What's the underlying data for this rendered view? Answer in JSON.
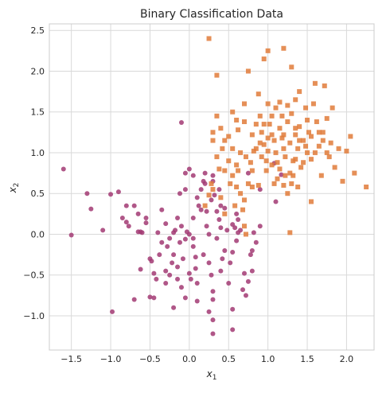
{
  "chart_data": {
    "type": "scatter",
    "title": "Binary Classification Data",
    "xlabel": {
      "base": "x",
      "sub": "1"
    },
    "ylabel": {
      "base": "x",
      "sub": "2"
    },
    "xlim": [
      -1.78,
      2.35
    ],
    "ylim": [
      -1.42,
      2.58
    ],
    "xticks": [
      -1.5,
      -1.0,
      -0.5,
      0.0,
      0.5,
      1.0,
      1.5,
      2.0
    ],
    "xtick_labels": [
      "−1.5",
      "−1.0",
      "−0.5",
      "0.0",
      "0.5",
      "1.0",
      "1.5",
      "2.0"
    ],
    "yticks": [
      -1.0,
      -0.5,
      0.0,
      0.5,
      1.0,
      1.5,
      2.0,
      2.5
    ],
    "ytick_labels": [
      "−1.0",
      "−0.5",
      "0.0",
      "0.5",
      "1.0",
      "1.5",
      "2.0",
      "2.5"
    ],
    "grid": true,
    "series": [
      {
        "color": "#a23a73",
        "marker": "circle",
        "points": [
          [
            -1.6,
            0.8
          ],
          [
            -1.5,
            -0.01
          ],
          [
            -1.3,
            0.5
          ],
          [
            -1.25,
            0.31
          ],
          [
            -1.1,
            0.05
          ],
          [
            -1.0,
            0.49
          ],
          [
            -0.9,
            0.52
          ],
          [
            -0.98,
            -0.95
          ],
          [
            -0.8,
            0.35
          ],
          [
            -0.7,
            -0.8
          ],
          [
            -0.65,
            0.03
          ],
          [
            -0.62,
            0.03
          ],
          [
            -0.8,
            0.15
          ],
          [
            -0.77,
            0.1
          ],
          [
            -0.62,
            -0.43
          ],
          [
            -0.55,
            0.2
          ],
          [
            -0.5,
            -0.3
          ],
          [
            -0.48,
            -0.33
          ],
          [
            -0.45,
            -0.48
          ],
          [
            -0.42,
            -0.55
          ],
          [
            -0.5,
            -0.77
          ],
          [
            -0.45,
            -0.78
          ],
          [
            -0.3,
            -0.6
          ],
          [
            -0.35,
            0.3
          ],
          [
            -0.3,
            0.13
          ],
          [
            -0.28,
            -0.15
          ],
          [
            -0.25,
            -0.5
          ],
          [
            -0.22,
            -0.35
          ],
          [
            -0.2,
            -0.25
          ],
          [
            -0.18,
            0.05
          ],
          [
            -0.15,
            0.2
          ],
          [
            -0.15,
            -0.4
          ],
          [
            -0.12,
            -0.1
          ],
          [
            -0.1,
            0.1
          ],
          [
            -0.1,
            -0.65
          ],
          [
            -0.08,
            -0.3
          ],
          [
            -0.05,
            -0.06
          ],
          [
            -0.05,
            0.55
          ],
          [
            -0.03,
            0.03
          ],
          [
            0.0,
            -0.48
          ],
          [
            0.02,
            -0.55
          ],
          [
            0.05,
            0.2
          ],
          [
            0.05,
            -0.15
          ],
          [
            0.08,
            -0.42
          ],
          [
            0.1,
            0.45
          ],
          [
            0.1,
            -0.6
          ],
          [
            0.12,
            0.35
          ],
          [
            0.15,
            0.3
          ],
          [
            0.18,
            -0.25
          ],
          [
            0.2,
            0.62
          ],
          [
            0.22,
            0.1
          ],
          [
            0.25,
            0.0
          ],
          [
            0.25,
            -0.35
          ],
          [
            0.28,
            -0.5
          ],
          [
            0.3,
            -0.7
          ],
          [
            0.3,
            0.72
          ],
          [
            0.32,
            0.48
          ],
          [
            0.35,
            -0.05
          ],
          [
            0.38,
            0.55
          ],
          [
            0.4,
            -0.45
          ],
          [
            0.42,
            -0.3
          ],
          [
            0.45,
            -0.2
          ],
          [
            0.48,
            0.05
          ],
          [
            0.5,
            -0.6
          ],
          [
            0.52,
            -0.35
          ],
          [
            0.55,
            0.12
          ],
          [
            0.55,
            -0.22
          ],
          [
            0.6,
            -0.08
          ],
          [
            0.62,
            0.02
          ],
          [
            0.65,
            0.05
          ],
          [
            0.7,
            -0.48
          ],
          [
            0.75,
            -0.58
          ],
          [
            0.78,
            -0.25
          ],
          [
            0.8,
            -0.45
          ],
          [
            0.82,
            0.02
          ],
          [
            0.4,
            0.35
          ],
          [
            0.35,
            0.28
          ],
          [
            0.28,
            0.42
          ],
          [
            0.15,
            0.55
          ],
          [
            0.05,
            0.72
          ],
          [
            -0.05,
            0.75
          ],
          [
            -0.12,
            0.5
          ],
          [
            -0.2,
            0.02
          ],
          [
            -0.35,
            -0.1
          ],
          [
            -0.4,
            0.02
          ],
          [
            -0.55,
            0.14
          ],
          [
            0.0,
            0.8
          ],
          [
            0.25,
            -0.95
          ],
          [
            0.3,
            -1.05
          ],
          [
            0.3,
            -1.22
          ],
          [
            0.55,
            -1.17
          ],
          [
            0.55,
            -0.92
          ],
          [
            0.68,
            -0.68
          ],
          [
            0.72,
            -0.75
          ],
          [
            0.45,
            0.32
          ],
          [
            0.6,
            0.25
          ],
          [
            0.62,
            0.18
          ],
          [
            0.58,
            0.08
          ],
          [
            0.75,
            0.75
          ],
          [
            0.8,
            -0.2
          ],
          [
            0.85,
            -0.1
          ],
          [
            0.9,
            0.1
          ],
          [
            0.2,
            0.75
          ],
          [
            0.18,
            0.65
          ],
          [
            0.05,
            -0.05
          ],
          [
            -0.05,
            -0.78
          ],
          [
            0.1,
            -0.82
          ],
          [
            -0.2,
            -0.9
          ],
          [
            0.3,
            -0.8
          ],
          [
            -0.1,
            1.37
          ],
          [
            1.08,
            0.87
          ],
          [
            1.17,
            0.73
          ],
          [
            1.1,
            0.4
          ],
          [
            0.9,
            0.55
          ],
          [
            0.3,
            0.65
          ],
          [
            0.22,
            0.28
          ],
          [
            -0.3,
            -0.45
          ],
          [
            -0.25,
            -0.05
          ],
          [
            -0.38,
            -0.25
          ],
          [
            -0.15,
            -0.55
          ],
          [
            0.38,
            0.18
          ],
          [
            0.4,
            0.08
          ],
          [
            0.08,
            -0.28
          ],
          [
            0.0,
            0.0
          ],
          [
            -0.6,
            0.02
          ],
          [
            -0.65,
            0.25
          ],
          [
            -0.7,
            0.35
          ],
          [
            -0.85,
            0.2
          ]
        ]
      },
      {
        "color": "#e07b39",
        "marker": "square",
        "points": [
          [
            0.25,
            2.4
          ],
          [
            0.35,
            1.95
          ],
          [
            0.35,
            1.45
          ],
          [
            0.3,
            1.25
          ],
          [
            0.3,
            1.15
          ],
          [
            0.4,
            1.3
          ],
          [
            0.45,
            1.15
          ],
          [
            0.5,
            1.2
          ],
          [
            0.55,
            1.5
          ],
          [
            0.55,
            1.05
          ],
          [
            0.6,
            1.4
          ],
          [
            0.62,
            1.28
          ],
          [
            0.65,
            1.0
          ],
          [
            0.7,
            1.6
          ],
          [
            0.7,
            1.38
          ],
          [
            0.72,
            0.95
          ],
          [
            0.78,
            0.88
          ],
          [
            0.8,
            1.22
          ],
          [
            0.85,
            1.05
          ],
          [
            0.88,
            1.72
          ],
          [
            0.9,
            1.45
          ],
          [
            0.92,
            1.25
          ],
          [
            0.95,
            1.1
          ],
          [
            0.98,
            0.9
          ],
          [
            1.0,
            1.6
          ],
          [
            1.02,
            1.35
          ],
          [
            1.05,
            1.22
          ],
          [
            1.08,
            1.15
          ],
          [
            1.1,
            1.0
          ],
          [
            1.12,
            0.88
          ],
          [
            1.15,
            1.3
          ],
          [
            1.18,
            1.18
          ],
          [
            1.2,
            1.05
          ],
          [
            1.22,
            0.95
          ],
          [
            1.25,
            1.38
          ],
          [
            1.28,
            1.12
          ],
          [
            1.3,
            1.48
          ],
          [
            1.32,
            0.9
          ],
          [
            1.35,
            1.22
          ],
          [
            1.38,
            1.05
          ],
          [
            1.4,
            1.32
          ],
          [
            1.42,
            0.82
          ],
          [
            1.45,
            1.15
          ],
          [
            1.48,
            1.55
          ],
          [
            1.5,
            1.0
          ],
          [
            1.52,
            1.25
          ],
          [
            1.55,
            0.92
          ],
          [
            1.58,
            1.6
          ],
          [
            1.6,
            1.85
          ],
          [
            1.62,
            1.38
          ],
          [
            1.65,
            1.08
          ],
          [
            1.68,
            0.72
          ],
          [
            1.7,
            1.25
          ],
          [
            1.72,
            1.82
          ],
          [
            1.75,
            1.42
          ],
          [
            1.78,
            0.95
          ],
          [
            1.8,
            1.12
          ],
          [
            1.82,
            1.55
          ],
          [
            1.85,
            0.82
          ],
          [
            1.9,
            1.05
          ],
          [
            1.95,
            0.65
          ],
          [
            2.0,
            1.02
          ],
          [
            2.05,
            1.2
          ],
          [
            2.1,
            0.75
          ],
          [
            2.25,
            0.58
          ],
          [
            0.75,
            2.0
          ],
          [
            0.95,
            2.15
          ],
          [
            1.0,
            2.25
          ],
          [
            1.2,
            2.28
          ],
          [
            1.3,
            2.05
          ],
          [
            1.4,
            1.75
          ],
          [
            1.35,
            1.65
          ],
          [
            0.35,
            0.95
          ],
          [
            0.38,
            0.8
          ],
          [
            0.45,
            0.78
          ],
          [
            0.5,
            0.9
          ],
          [
            0.55,
            0.72
          ],
          [
            0.6,
            0.58
          ],
          [
            0.65,
            0.5
          ],
          [
            0.7,
            0.42
          ],
          [
            0.3,
            0.55
          ],
          [
            0.25,
            0.48
          ],
          [
            0.2,
            0.35
          ],
          [
            0.6,
            0.85
          ],
          [
            0.75,
            0.62
          ],
          [
            0.8,
            0.58
          ],
          [
            0.82,
            1.02
          ],
          [
            0.88,
            0.6
          ],
          [
            0.92,
            0.95
          ],
          [
            0.95,
            1.35
          ],
          [
            1.0,
            1.02
          ],
          [
            1.05,
            0.85
          ],
          [
            1.08,
            0.62
          ],
          [
            1.12,
            0.68
          ],
          [
            1.15,
            0.8
          ],
          [
            1.18,
            1.45
          ],
          [
            1.2,
            0.6
          ],
          [
            1.22,
            0.72
          ],
          [
            1.25,
            0.5
          ],
          [
            1.28,
            0.75
          ],
          [
            1.3,
            0.62
          ],
          [
            1.32,
            0.72
          ],
          [
            1.35,
            0.92
          ],
          [
            1.38,
            0.58
          ],
          [
            1.4,
            1.15
          ],
          [
            1.45,
            0.88
          ],
          [
            1.5,
            1.4
          ],
          [
            1.55,
            0.4
          ],
          [
            1.6,
            1.0
          ],
          [
            1.65,
            1.25
          ],
          [
            1.7,
            1.15
          ],
          [
            1.75,
            1.0
          ],
          [
            0.7,
            0.1
          ],
          [
            0.72,
            0.0
          ],
          [
            0.58,
            0.35
          ],
          [
            1.28,
            0.02
          ],
          [
            0.98,
            0.78
          ],
          [
            0.9,
            1.12
          ],
          [
            0.85,
            1.35
          ],
          [
            0.42,
            1.05
          ],
          [
            0.28,
            0.62
          ],
          [
            0.52,
            0.62
          ],
          [
            0.8,
            0.78
          ],
          [
            1.05,
            1.45
          ],
          [
            1.1,
            1.55
          ],
          [
            1.15,
            1.62
          ],
          [
            1.25,
            1.58
          ],
          [
            1.48,
            1.08
          ],
          [
            0.68,
            0.3
          ],
          [
            0.45,
            0.25
          ],
          [
            0.4,
            0.45
          ],
          [
            0.62,
            0.78
          ],
          [
            1.35,
            1.3
          ],
          [
            1.55,
            1.2
          ],
          [
            1.2,
            1.22
          ],
          [
            1.0,
            1.18
          ]
        ]
      }
    ]
  }
}
